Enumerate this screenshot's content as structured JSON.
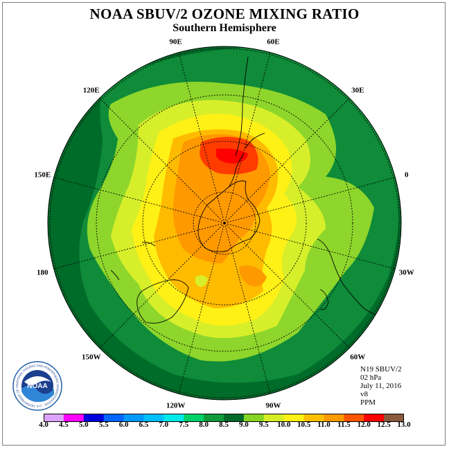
{
  "title": "NOAA SBUV/2 OZONE MIXING RATIO",
  "subtitle": "Southern Hemisphere",
  "map": {
    "projection": "south polar stereographic",
    "longitude_labels": [
      {
        "label": "90W",
        "lon": -90
      },
      {
        "label": "60W",
        "lon": -60
      },
      {
        "label": "30W",
        "lon": -30
      },
      {
        "label": "0",
        "lon": 0
      },
      {
        "label": "30E",
        "lon": 30
      },
      {
        "label": "60E",
        "lon": 60
      },
      {
        "label": "90E",
        "lon": 90
      },
      {
        "label": "120E",
        "lon": 120
      },
      {
        "label": "150E",
        "lon": 150
      },
      {
        "label": "180",
        "lon": 180
      },
      {
        "label": "150W",
        "lon": -150
      },
      {
        "label": "120W",
        "lon": -120
      }
    ],
    "latitude_circles": [
      -80,
      -60,
      -40,
      -20
    ],
    "field_levels_ppm": [
      {
        "level": 8.5,
        "color": "#006c2a"
      },
      {
        "level": 9.0,
        "color": "#0f8b39"
      },
      {
        "level": 9.5,
        "color": "#8ed62b"
      },
      {
        "level": 10.0,
        "color": "#d7ef2a"
      },
      {
        "level": 10.5,
        "color": "#fff016"
      },
      {
        "level": 11.0,
        "color": "#ffbb00"
      },
      {
        "level": 11.5,
        "color": "#ff9900"
      },
      {
        "level": 12.0,
        "color": "#ff3b00"
      },
      {
        "level": 12.5,
        "color": "#ff0000"
      }
    ]
  },
  "info": {
    "satellite": "N19 SBUV/2",
    "pressure": "02 hPa",
    "date": "July 11, 2016",
    "version": "v8",
    "units": "PPM"
  },
  "logo_text": "NOAA",
  "logo_ring_text": "NATIONAL OCEANIC AND ATMOSPHERIC ADMINISTRATION · U.S. DEPARTMENT OF COMMERCE",
  "colorbar": {
    "ticks": [
      "4.0",
      "4.5",
      "5.0",
      "5.5",
      "6.0",
      "6.5",
      "7.0",
      "7.5",
      "8.0",
      "8.5",
      "9.0",
      "9.5",
      "10.0",
      "10.5",
      "11.0",
      "11.5",
      "12.0",
      "12.5",
      "13.0"
    ],
    "colors": [
      "#b36cff",
      "#dca4ff",
      "#ff00ff",
      "#0000dd",
      "#0066ff",
      "#0099ff",
      "#00bfff",
      "#00eaea",
      "#00d26a",
      "#109a3a",
      "#006a29",
      "#86d522",
      "#d5ee24",
      "#fff214",
      "#ffc000",
      "#ff9a00",
      "#ff5500",
      "#ff0000",
      "#8a5a3c"
    ]
  }
}
